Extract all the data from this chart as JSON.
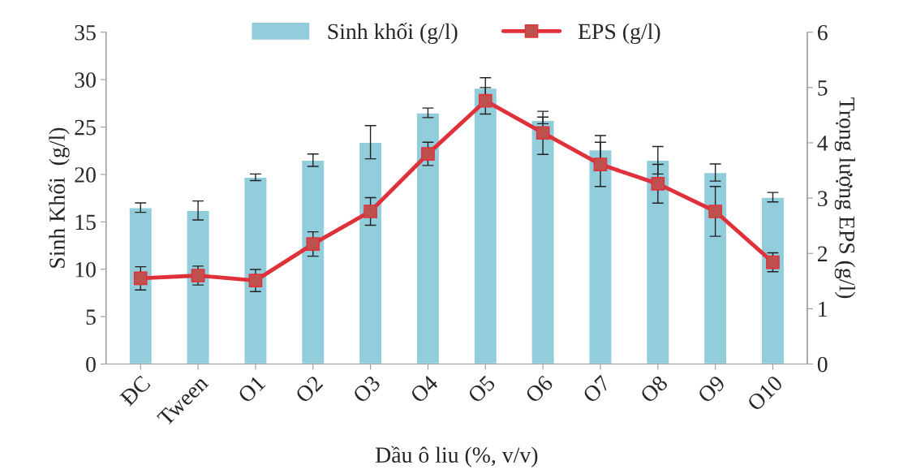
{
  "chart_data": {
    "type": "bar",
    "xlabel": "Dầu ô liu (%, v/v)",
    "ylabel": "Sinh Khối  (g/l)",
    "y2label": "Trọng lượng EPS (g/l)",
    "categories": [
      "ĐC",
      "Tween",
      "O1",
      "O2",
      "O3",
      "O4",
      "O5",
      "O6",
      "O7",
      "O8",
      "O9",
      "O10"
    ],
    "series": [
      {
        "name": "Sinh khối (g/l)",
        "color": "#92cddc",
        "values": [
          16.5,
          16.2,
          19.7,
          21.5,
          23.4,
          26.5,
          29.1,
          25.7,
          22.6,
          21.5,
          20.2,
          17.6
        ],
        "errors": [
          0.5,
          1.0,
          0.35,
          0.65,
          1.75,
          0.5,
          1.1,
          0.35,
          1.5,
          1.45,
          0.9,
          0.5
        ]
      },
      {
        "name": "EPS (g/l)",
        "type": "line",
        "axis": "y2",
        "color": "#e0303a",
        "marker": "square",
        "line_style": "solid",
        "values": [
          1.55,
          1.6,
          1.51,
          2.17,
          2.76,
          3.8,
          4.76,
          4.18,
          3.61,
          3.26,
          2.76,
          1.84
        ],
        "errors": [
          0.21,
          0.17,
          0.2,
          0.22,
          0.25,
          0.21,
          0.24,
          0.39,
          0.4,
          0.35,
          0.45,
          0.17
        ]
      }
    ],
    "ylim": [
      0,
      35
    ],
    "yticks": [
      0,
      5,
      10,
      15,
      20,
      25,
      30,
      35
    ],
    "y2lim": [
      0,
      6
    ],
    "y2ticks": [
      0,
      1,
      2,
      3,
      4,
      5,
      6
    ],
    "legend": "top",
    "grid": false
  }
}
